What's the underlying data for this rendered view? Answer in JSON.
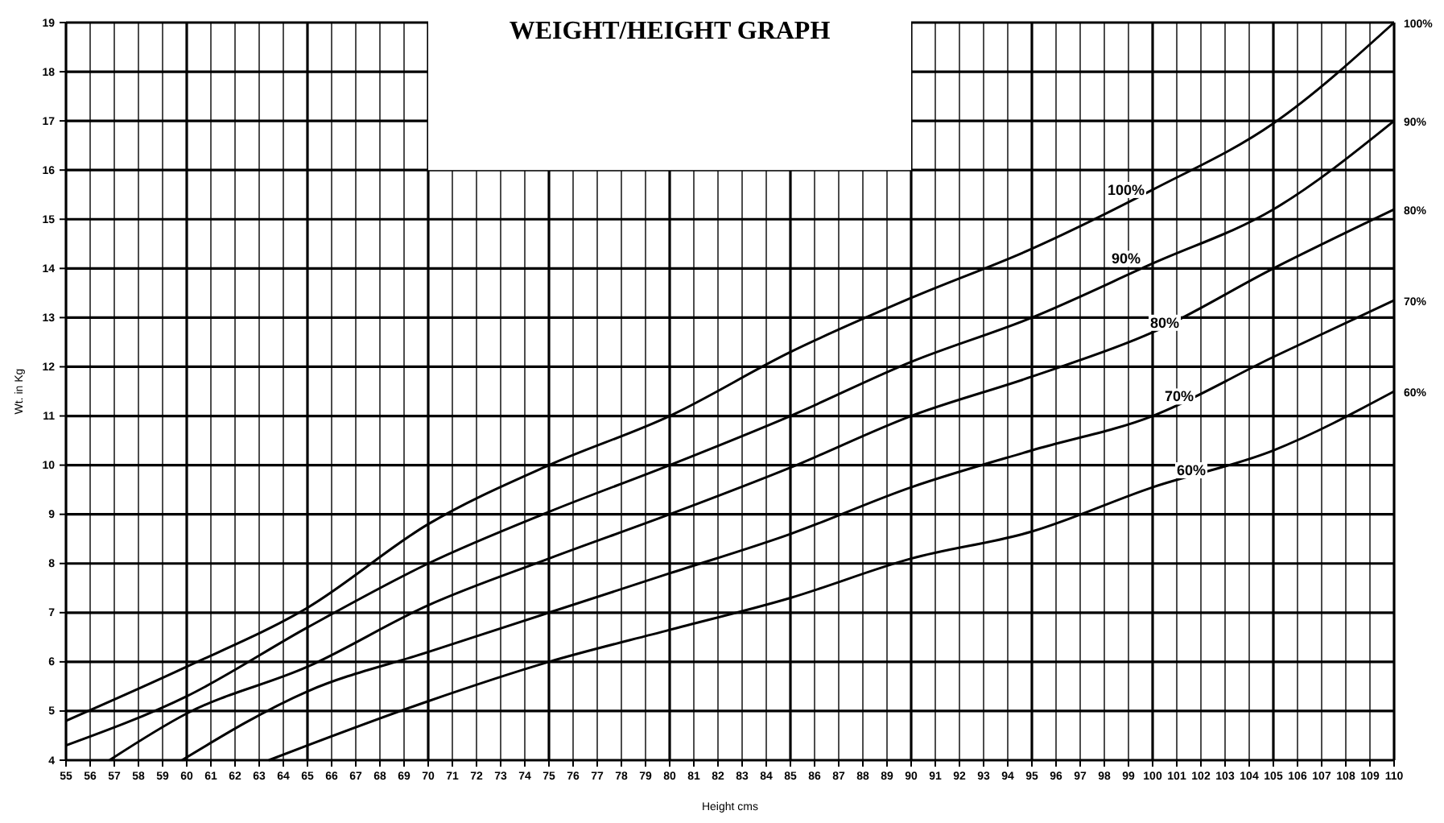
{
  "chart_data": {
    "type": "line",
    "title": "WEIGHT/HEIGHT GRAPH",
    "xlabel": "Height cms",
    "ylabel": "Wt. in Kg",
    "xlim": [
      55,
      110
    ],
    "ylim": [
      4,
      19
    ],
    "xticks": [
      55,
      56,
      57,
      58,
      59,
      60,
      61,
      62,
      63,
      64,
      65,
      66,
      67,
      68,
      69,
      70,
      71,
      72,
      73,
      74,
      75,
      76,
      77,
      78,
      79,
      80,
      81,
      82,
      83,
      84,
      85,
      86,
      87,
      88,
      89,
      90,
      91,
      92,
      93,
      94,
      95,
      96,
      97,
      98,
      99,
      100,
      101,
      102,
      103,
      104,
      105,
      106,
      107,
      108,
      109,
      110
    ],
    "yticks": [
      4,
      5,
      6,
      7,
      8,
      9,
      10,
      11,
      12,
      13,
      14,
      15,
      16,
      17,
      18,
      19
    ],
    "grid": true,
    "marker": "none",
    "line_style": "solid",
    "series": [
      {
        "name": "100%",
        "color": "#000000",
        "x": [
          55,
          60,
          65,
          70,
          75,
          80,
          85,
          90,
          95,
          100,
          105,
          110
        ],
        "values": [
          4.8,
          5.9,
          7.1,
          8.8,
          10.0,
          11.0,
          12.3,
          13.4,
          14.4,
          15.6,
          16.95,
          19.0
        ]
      },
      {
        "name": "90%",
        "color": "#000000",
        "x": [
          55,
          60,
          65,
          70,
          75,
          80,
          85,
          90,
          95,
          100,
          105,
          110
        ],
        "values": [
          4.3,
          5.3,
          6.7,
          8.0,
          9.05,
          10.0,
          11.0,
          12.1,
          13.0,
          14.1,
          15.2,
          17.0
        ]
      },
      {
        "name": "80%",
        "color": "#000000",
        "x": [
          56.8,
          60,
          65,
          70,
          75,
          80,
          85,
          90,
          95,
          100,
          105,
          110
        ],
        "values": [
          4.0,
          4.95,
          5.9,
          7.15,
          8.1,
          9.0,
          9.95,
          11.0,
          11.8,
          12.7,
          14.0,
          15.2
        ]
      },
      {
        "name": "70%",
        "color": "#000000",
        "x": [
          59.8,
          65,
          70,
          75,
          80,
          85,
          90,
          95,
          100,
          105,
          110
        ],
        "values": [
          4.0,
          5.4,
          6.2,
          7.0,
          7.8,
          8.6,
          9.55,
          10.3,
          11.0,
          12.2,
          13.35
        ]
      },
      {
        "name": "60%",
        "color": "#000000",
        "x": [
          63.4,
          65,
          70,
          75,
          80,
          85,
          90,
          95,
          100,
          105,
          110
        ],
        "values": [
          4.0,
          4.3,
          5.2,
          6.0,
          6.65,
          7.3,
          8.1,
          8.65,
          9.55,
          10.3,
          11.5
        ]
      }
    ],
    "annotations": [
      {
        "text": "100%",
        "x": 98.9,
        "y": 15.6
      },
      {
        "text": "90%",
        "x": 98.9,
        "y": 14.2
      },
      {
        "text": "80%",
        "x": 100.5,
        "y": 12.9
      },
      {
        "text": "70%",
        "x": 101.1,
        "y": 11.4
      },
      {
        "text": "60%",
        "x": 101.6,
        "y": 9.9
      }
    ]
  }
}
